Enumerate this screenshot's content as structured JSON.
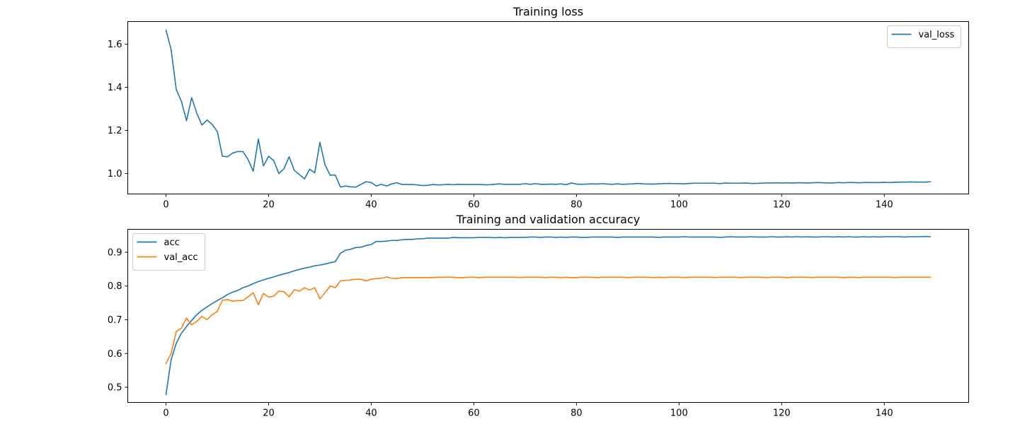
{
  "chart_data": [
    {
      "type": "line",
      "title": "Training loss",
      "xlabel": "",
      "ylabel": "",
      "xlim": [
        -7.45,
        156.45
      ],
      "ylim": [
        0.905,
        1.705
      ],
      "xticks": [
        0,
        20,
        40,
        60,
        80,
        100,
        120,
        140
      ],
      "yticks": [
        1.0,
        1.2,
        1.4,
        1.6
      ],
      "ytick_labels": [
        "1.0",
        "1.2",
        "1.4",
        "1.6"
      ],
      "legend_position": "upper right",
      "grid": false,
      "series": [
        {
          "name": "val_loss",
          "color": "#1f77b4",
          "values": [
            1.665,
            1.575,
            1.39,
            1.335,
            1.245,
            1.352,
            1.28,
            1.225,
            1.248,
            1.228,
            1.195,
            1.08,
            1.078,
            1.095,
            1.102,
            1.102,
            1.065,
            1.01,
            1.16,
            1.035,
            1.08,
            1.06,
            1.0,
            1.022,
            1.078,
            1.015,
            0.995,
            0.975,
            1.02,
            1.003,
            1.145,
            1.04,
            0.992,
            0.993,
            0.937,
            0.942,
            0.938,
            0.937,
            0.95,
            0.962,
            0.958,
            0.942,
            0.95,
            0.942,
            0.952,
            0.957,
            0.949,
            0.949,
            0.949,
            0.947,
            0.944,
            0.945,
            0.949,
            0.947,
            0.948,
            0.95,
            0.948,
            0.95,
            0.949,
            0.949,
            0.949,
            0.949,
            0.948,
            0.948,
            0.95,
            0.952,
            0.95,
            0.95,
            0.95,
            0.95,
            0.953,
            0.95,
            0.953,
            0.95,
            0.95,
            0.951,
            0.95,
            0.952,
            0.948,
            0.956,
            0.951,
            0.95,
            0.951,
            0.952,
            0.951,
            0.953,
            0.951,
            0.95,
            0.952,
            0.95,
            0.951,
            0.952,
            0.954,
            0.952,
            0.951,
            0.951,
            0.952,
            0.953,
            0.954,
            0.953,
            0.953,
            0.952,
            0.954,
            0.955,
            0.955,
            0.955,
            0.955,
            0.955,
            0.953,
            0.956,
            0.955,
            0.955,
            0.955,
            0.956,
            0.954,
            0.954,
            0.955,
            0.956,
            0.956,
            0.957,
            0.956,
            0.957,
            0.956,
            0.957,
            0.957,
            0.956,
            0.957,
            0.958,
            0.957,
            0.956,
            0.956,
            0.958,
            0.957,
            0.958,
            0.958,
            0.957,
            0.958,
            0.958,
            0.958,
            0.958,
            0.959,
            0.958,
            0.959,
            0.96,
            0.96,
            0.961,
            0.96,
            0.96,
            0.96,
            0.962
          ]
        }
      ]
    },
    {
      "type": "line",
      "title": "Training and validation accuracy",
      "xlabel": "",
      "ylabel": "",
      "xlim": [
        -7.45,
        156.45
      ],
      "ylim": [
        0.455,
        0.968
      ],
      "xticks": [
        0,
        20,
        40,
        60,
        80,
        100,
        120,
        140
      ],
      "yticks": [
        0.5,
        0.6,
        0.7,
        0.8,
        0.9
      ],
      "ytick_labels": [
        "0.5",
        "0.6",
        "0.7",
        "0.8",
        "0.9"
      ],
      "legend_position": "upper left",
      "grid": false,
      "series": [
        {
          "name": "acc",
          "color": "#1f77b4",
          "values": [
            0.478,
            0.582,
            0.63,
            0.66,
            0.68,
            0.698,
            0.715,
            0.728,
            0.738,
            0.748,
            0.757,
            0.765,
            0.775,
            0.782,
            0.787,
            0.795,
            0.8,
            0.807,
            0.813,
            0.818,
            0.823,
            0.827,
            0.832,
            0.836,
            0.84,
            0.845,
            0.849,
            0.853,
            0.856,
            0.86,
            0.862,
            0.865,
            0.869,
            0.872,
            0.897,
            0.906,
            0.909,
            0.914,
            0.915,
            0.92,
            0.923,
            0.932,
            0.932,
            0.933,
            0.935,
            0.935,
            0.937,
            0.938,
            0.938,
            0.94,
            0.94,
            0.942,
            0.942,
            0.942,
            0.942,
            0.942,
            0.944,
            0.943,
            0.943,
            0.943,
            0.943,
            0.944,
            0.944,
            0.944,
            0.943,
            0.944,
            0.943,
            0.944,
            0.944,
            0.944,
            0.944,
            0.945,
            0.945,
            0.944,
            0.945,
            0.945,
            0.944,
            0.945,
            0.944,
            0.945,
            0.945,
            0.944,
            0.944,
            0.945,
            0.945,
            0.945,
            0.945,
            0.945,
            0.944,
            0.945,
            0.945,
            0.945,
            0.945,
            0.945,
            0.945,
            0.945,
            0.944,
            0.945,
            0.945,
            0.945,
            0.945,
            0.946,
            0.945,
            0.945,
            0.945,
            0.945,
            0.945,
            0.945,
            0.944,
            0.945,
            0.946,
            0.945,
            0.945,
            0.945,
            0.946,
            0.945,
            0.945,
            0.945,
            0.946,
            0.945,
            0.945,
            0.946,
            0.945,
            0.946,
            0.945,
            0.946,
            0.945,
            0.945,
            0.946,
            0.946,
            0.945,
            0.946,
            0.945,
            0.946,
            0.945,
            0.945,
            0.946,
            0.945,
            0.946,
            0.945,
            0.946,
            0.946,
            0.946,
            0.946,
            0.945,
            0.946,
            0.946,
            0.946,
            0.947,
            0.946
          ]
        },
        {
          "name": "val_acc",
          "color": "#ff7f0e",
          "values": [
            0.57,
            0.6,
            0.665,
            0.675,
            0.705,
            0.685,
            0.695,
            0.71,
            0.7,
            0.715,
            0.725,
            0.758,
            0.76,
            0.755,
            0.757,
            0.757,
            0.768,
            0.78,
            0.745,
            0.778,
            0.767,
            0.77,
            0.785,
            0.783,
            0.768,
            0.789,
            0.785,
            0.795,
            0.788,
            0.795,
            0.762,
            0.78,
            0.8,
            0.795,
            0.815,
            0.817,
            0.818,
            0.82,
            0.82,
            0.815,
            0.82,
            0.822,
            0.823,
            0.827,
            0.823,
            0.822,
            0.825,
            0.825,
            0.825,
            0.825,
            0.825,
            0.825,
            0.825,
            0.826,
            0.826,
            0.826,
            0.826,
            0.825,
            0.825,
            0.826,
            0.826,
            0.825,
            0.826,
            0.826,
            0.826,
            0.826,
            0.826,
            0.826,
            0.826,
            0.825,
            0.826,
            0.826,
            0.826,
            0.826,
            0.825,
            0.826,
            0.826,
            0.825,
            0.826,
            0.825,
            0.825,
            0.826,
            0.826,
            0.826,
            0.825,
            0.826,
            0.826,
            0.826,
            0.826,
            0.826,
            0.825,
            0.826,
            0.826,
            0.826,
            0.826,
            0.825,
            0.826,
            0.825,
            0.826,
            0.826,
            0.826,
            0.825,
            0.826,
            0.826,
            0.826,
            0.826,
            0.826,
            0.825,
            0.826,
            0.826,
            0.826,
            0.826,
            0.825,
            0.826,
            0.826,
            0.826,
            0.826,
            0.825,
            0.826,
            0.826,
            0.826,
            0.825,
            0.826,
            0.826,
            0.826,
            0.826,
            0.825,
            0.826,
            0.826,
            0.826,
            0.826,
            0.826,
            0.825,
            0.826,
            0.826,
            0.825,
            0.826,
            0.826,
            0.826,
            0.826,
            0.826,
            0.826,
            0.825,
            0.826,
            0.826,
            0.826,
            0.826,
            0.826,
            0.826,
            0.826
          ]
        }
      ]
    }
  ]
}
